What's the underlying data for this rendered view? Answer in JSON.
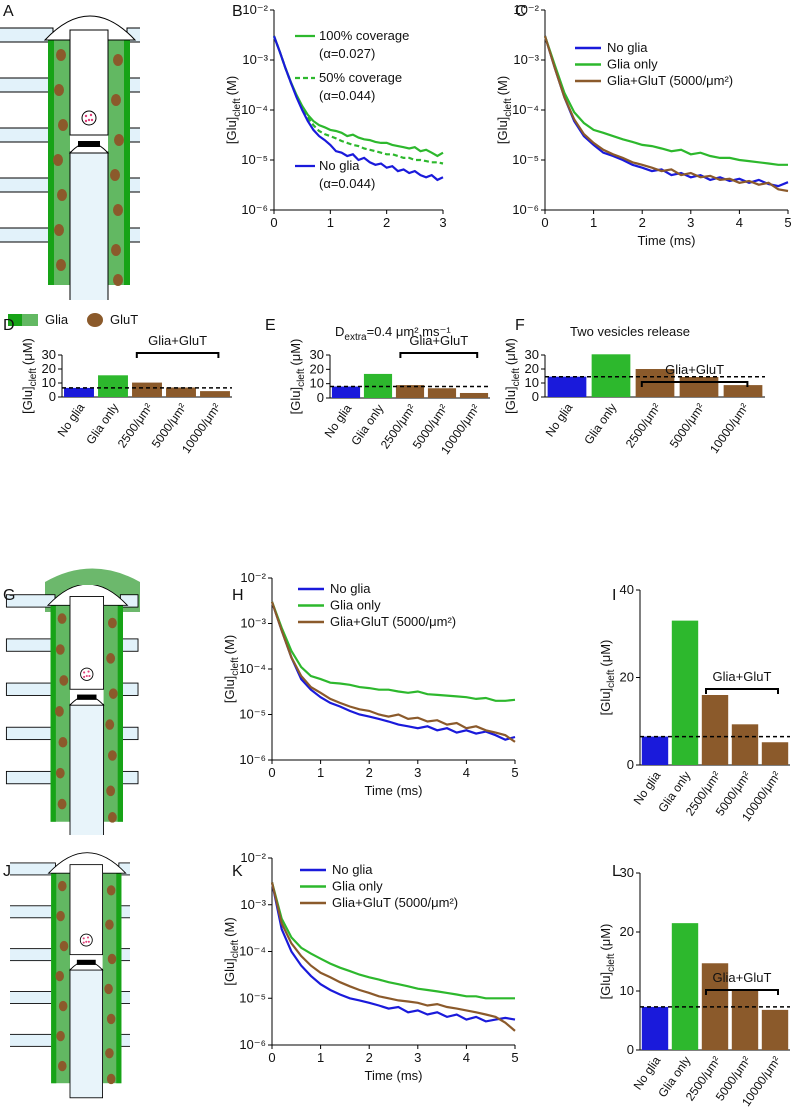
{
  "diagrams": {
    "panels": [
      "A",
      "G",
      "J"
    ],
    "legend": [
      "Glia",
      "GluT"
    ]
  },
  "chart_data": [
    {
      "type": "line",
      "panel": "B",
      "log_y": true,
      "legend": "inline",
      "y_label": [
        "[Glu]",
        "cleft",
        "(M)"
      ],
      "ylim": [
        1e-06,
        0.01
      ],
      "yticks": [
        {
          "value": 1e-06,
          "label": "10⁻⁶"
        },
        {
          "value": 1e-05,
          "label": "10⁻⁵"
        },
        {
          "value": 0.0001,
          "label": "10⁻⁴"
        },
        {
          "value": 0.001,
          "label": "10⁻³"
        },
        {
          "value": 0.01,
          "label": "10⁻²"
        }
      ],
      "xlim": [
        0,
        3
      ],
      "xticks": [
        0,
        1,
        2,
        3
      ],
      "x": [
        0,
        0.1,
        0.2,
        0.3,
        0.4,
        0.5,
        0.6,
        0.7,
        0.8,
        0.9,
        1,
        1.1,
        1.2,
        1.3,
        1.4,
        1.5,
        1.6,
        1.7,
        1.8,
        1.9,
        2,
        2.1,
        2.2,
        2.3,
        2.4,
        2.5,
        2.6,
        2.7,
        2.8,
        2.9,
        3
      ],
      "series": [
        {
          "name": "100% coverage",
          "note": "(α=0.027)",
          "color": "#2db82d",
          "dash": false,
          "values": [
            0.003,
            0.0015,
            0.0007,
            0.00036,
            0.0002,
            0.00012,
            8e-05,
            6e-05,
            5e-05,
            4.5e-05,
            4e-05,
            3.8e-05,
            3.5e-05,
            3e-05,
            3.2e-05,
            2.8e-05,
            2.6e-05,
            2.5e-05,
            2.3e-05,
            2.2e-05,
            2.2e-05,
            2e-05,
            1.9e-05,
            1.8e-05,
            1.7e-05,
            1.8e-05,
            1.5e-05,
            1.6e-05,
            1.4e-05,
            1.2e-05,
            1.4e-05
          ]
        },
        {
          "name": "50% coverage",
          "note": "(α=0.044)",
          "color": "#2db82d",
          "dash": true,
          "values": [
            0.003,
            0.0015,
            0.0007,
            0.00035,
            0.00019,
            0.00011,
            7e-05,
            5e-05,
            3.8e-05,
            3.3e-05,
            3e-05,
            2.7e-05,
            2.4e-05,
            2.2e-05,
            2e-05,
            1.9e-05,
            1.7e-05,
            1.6e-05,
            1.5e-05,
            1.4e-05,
            1.3e-05,
            1.3e-05,
            1.2e-05,
            1.1e-05,
            1.1e-05,
            1e-05,
            1e-05,
            9.5e-06,
            9e-06,
            9e-06,
            8.5e-06
          ]
        },
        {
          "name": "No glia",
          "note": "(α=0.044)",
          "color": "#1a1adb",
          "dash": false,
          "values": [
            0.003,
            0.0015,
            0.0007,
            0.00035,
            0.00018,
            0.0001,
            6e-05,
            4e-05,
            3e-05,
            2.5e-05,
            2e-05,
            1.5e-05,
            1.4e-05,
            1.2e-05,
            1.3e-05,
            1e-05,
            1.1e-05,
            9e-06,
            8e-06,
            8.5e-06,
            7e-06,
            7.5e-06,
            6e-06,
            6.5e-06,
            5.5e-06,
            6e-06,
            5e-06,
            4.5e-06,
            5e-06,
            4e-06,
            4.5e-06
          ]
        }
      ]
    },
    {
      "type": "line",
      "panel": "C",
      "log_y": true,
      "legend": "upper right",
      "y_label": [
        "[Glu]",
        "cleft",
        "(M)"
      ],
      "x_label": "Time (ms)",
      "ylim": [
        1e-06,
        0.01
      ],
      "yticks": [
        {
          "value": 1e-06,
          "label": "10⁻⁶"
        },
        {
          "value": 1e-05,
          "label": "10⁻⁵"
        },
        {
          "value": 0.0001,
          "label": "10⁻⁴"
        },
        {
          "value": 0.001,
          "label": "10⁻³"
        },
        {
          "value": 0.01,
          "label": "10⁻²"
        }
      ],
      "xlim": [
        0,
        5
      ],
      "xticks": [
        0,
        1,
        2,
        3,
        4,
        5
      ],
      "x": [
        0,
        0.2,
        0.4,
        0.6,
        0.8,
        1,
        1.2,
        1.4,
        1.6,
        1.8,
        2,
        2.2,
        2.4,
        2.6,
        2.8,
        3,
        3.2,
        3.4,
        3.6,
        3.8,
        4,
        4.2,
        4.4,
        4.6,
        4.8,
        5
      ],
      "series": [
        {
          "name": "No glia",
          "color": "#1a1adb",
          "values": [
            0.003,
            0.0007,
            0.00018,
            6e-05,
            3e-05,
            2e-05,
            1.4e-05,
            1.2e-05,
            1e-05,
            8e-06,
            7e-06,
            6e-06,
            6.5e-06,
            5e-06,
            5.5e-06,
            4.5e-06,
            5e-06,
            4e-06,
            4.5e-06,
            3.8e-06,
            4.2e-06,
            3.5e-06,
            4e-06,
            3.3e-06,
            3e-06,
            3.6e-06
          ]
        },
        {
          "name": "Glia only",
          "color": "#2db82d",
          "values": [
            0.003,
            0.0008,
            0.00022,
            9e-05,
            5.5e-05,
            4e-05,
            3.5e-05,
            3e-05,
            2.6e-05,
            2.3e-05,
            2e-05,
            1.9e-05,
            1.7e-05,
            1.5e-05,
            1.6e-05,
            1.3e-05,
            1.4e-05,
            1.2e-05,
            1.1e-05,
            1.1e-05,
            1e-05,
            9.5e-06,
            9e-06,
            8.5e-06,
            8e-06,
            8e-06
          ]
        },
        {
          "name": "Glia+GluT (5000/μm²)",
          "color": "#8b5a2b",
          "values": [
            0.003,
            0.0007,
            0.00018,
            6.5e-05,
            3.3e-05,
            2.2e-05,
            1.6e-05,
            1.3e-05,
            1.1e-05,
            9e-06,
            8e-06,
            7e-06,
            6e-06,
            6.5e-06,
            5e-06,
            5.5e-06,
            4.5e-06,
            4.8e-06,
            4e-06,
            4.2e-06,
            3.5e-06,
            3.8e-06,
            3.2e-06,
            3.5e-06,
            2.6e-06,
            2.4e-06
          ]
        }
      ]
    },
    {
      "type": "bar",
      "panel": "D",
      "y_label": [
        "[Glu]",
        "cleft",
        "(μM)"
      ],
      "ylim": [
        0,
        30
      ],
      "yticks": [
        0,
        10,
        20,
        30
      ],
      "categories": [
        "No glia",
        "Glia only",
        "2500/μm²",
        "5000/μm²",
        "10000/μm²"
      ],
      "values": [
        6.5,
        15.5,
        10.3,
        6.8,
        4.2
      ],
      "colors": [
        "#1a1adb",
        "#2db82d",
        "#8b5a2b",
        "#8b5a2b",
        "#8b5a2b"
      ],
      "reference_line": 6.5,
      "group_label": "Glia+GluT"
    },
    {
      "type": "bar",
      "panel": "E",
      "title_parts": [
        "D",
        "extra",
        "=0.4 μm².ms⁻¹"
      ],
      "y_label": [
        "[Glu]",
        "cleft",
        "(μM)"
      ],
      "ylim": [
        0,
        30
      ],
      "yticks": [
        0,
        10,
        20,
        30
      ],
      "categories": [
        "No glia",
        "Glia only",
        "2500/μm²",
        "5000/μm²",
        "10000/μm²"
      ],
      "values": [
        8,
        16.8,
        9,
        6.8,
        3.5
      ],
      "colors": [
        "#1a1adb",
        "#2db82d",
        "#8b5a2b",
        "#8b5a2b",
        "#8b5a2b"
      ],
      "reference_line": 8,
      "group_label": "Glia+GluT"
    },
    {
      "type": "bar",
      "panel": "F",
      "title": "Two vesicles release",
      "y_label": [
        "[Glu]",
        "cleft",
        "(μM)"
      ],
      "ylim": [
        0,
        30
      ],
      "yticks": [
        0,
        10,
        20,
        30
      ],
      "categories": [
        "No glia",
        "Glia only",
        "2500/μm²",
        "5000/μm²",
        "10000/μm²"
      ],
      "values": [
        14.5,
        30.5,
        20,
        14.3,
        8.5
      ],
      "colors": [
        "#1a1adb",
        "#2db82d",
        "#8b5a2b",
        "#8b5a2b",
        "#8b5a2b"
      ],
      "reference_line": 14.5,
      "group_label": "Glia+GluT"
    },
    {
      "type": "line",
      "panel": "H",
      "log_y": true,
      "legend": "upper right",
      "y_label": [
        "[Glu]",
        "cleft",
        "(M)"
      ],
      "x_label": "Time (ms)",
      "ylim": [
        1e-06,
        0.01
      ],
      "yticks": [
        {
          "value": 1e-06,
          "label": "10⁻⁶"
        },
        {
          "value": 1e-05,
          "label": "10⁻⁵"
        },
        {
          "value": 0.0001,
          "label": "10⁻⁴"
        },
        {
          "value": 0.001,
          "label": "10⁻³"
        },
        {
          "value": 0.01,
          "label": "10⁻²"
        }
      ],
      "xlim": [
        0,
        5
      ],
      "xticks": [
        0,
        1,
        2,
        3,
        4,
        5
      ],
      "x": [
        0,
        0.2,
        0.4,
        0.6,
        0.8,
        1,
        1.2,
        1.4,
        1.6,
        1.8,
        2,
        2.2,
        2.4,
        2.6,
        2.8,
        3,
        3.2,
        3.4,
        3.6,
        3.8,
        4,
        4.2,
        4.4,
        4.6,
        4.8,
        5
      ],
      "series": [
        {
          "name": "No glia",
          "color": "#1a1adb",
          "values": [
            0.003,
            0.0007,
            0.00018,
            6e-05,
            3.5e-05,
            2.4e-05,
            1.8e-05,
            1.5e-05,
            1.2e-05,
            1e-05,
            9e-06,
            8e-06,
            7e-06,
            6e-06,
            5.5e-06,
            5e-06,
            5.5e-06,
            4.5e-06,
            5e-06,
            4e-06,
            4.5e-06,
            3.8e-06,
            4.2e-06,
            3.5e-06,
            2.8e-06,
            3.2e-06
          ]
        },
        {
          "name": "Glia only",
          "color": "#2db82d",
          "values": [
            0.003,
            0.0008,
            0.00025,
            0.00011,
            7e-05,
            6e-05,
            5e-05,
            4.8e-05,
            4.5e-05,
            4e-05,
            3.8e-05,
            3.5e-05,
            3.5e-05,
            3.2e-05,
            3e-05,
            3.2e-05,
            2.8e-05,
            2.7e-05,
            2.6e-05,
            2.5e-05,
            2.4e-05,
            2.2e-05,
            2.3e-05,
            2e-05,
            2e-05,
            2.1e-05
          ]
        },
        {
          "name": "Glia+GluT (5000/μm²)",
          "color": "#8b5a2b",
          "values": [
            0.003,
            0.0007,
            0.00018,
            7e-05,
            4e-05,
            3e-05,
            2.2e-05,
            1.8e-05,
            1.5e-05,
            1.3e-05,
            1.2e-05,
            1e-05,
            9e-06,
            1e-05,
            8e-06,
            8.5e-06,
            7e-06,
            7.5e-06,
            6e-06,
            6.5e-06,
            5e-06,
            5.5e-06,
            4.5e-06,
            4e-06,
            3.5e-06,
            2.5e-06
          ]
        }
      ]
    },
    {
      "type": "bar",
      "panel": "I",
      "y_label": [
        "[Glu]",
        "cleft",
        "(μM)"
      ],
      "ylim": [
        0,
        40
      ],
      "yticks": [
        0,
        20,
        40
      ],
      "categories": [
        "No glia",
        "Glia only",
        "2500/μm²",
        "5000/μm²",
        "10000/μm²"
      ],
      "values": [
        6.5,
        33,
        16,
        9.3,
        5.2
      ],
      "colors": [
        "#1a1adb",
        "#2db82d",
        "#8b5a2b",
        "#8b5a2b",
        "#8b5a2b"
      ],
      "reference_line": 6.5,
      "group_label": "Glia+GluT"
    },
    {
      "type": "line",
      "panel": "K",
      "log_y": true,
      "legend": "upper right",
      "y_label": [
        "[Glu]",
        "cleft",
        "(M)"
      ],
      "x_label": "Time (ms)",
      "ylim": [
        1e-06,
        0.01
      ],
      "yticks": [
        {
          "value": 1e-06,
          "label": "10⁻⁶"
        },
        {
          "value": 1e-05,
          "label": "10⁻⁵"
        },
        {
          "value": 0.0001,
          "label": "10⁻⁴"
        },
        {
          "value": 0.001,
          "label": "10⁻³"
        },
        {
          "value": 0.01,
          "label": "10⁻²"
        }
      ],
      "xlim": [
        0,
        5
      ],
      "xticks": [
        0,
        1,
        2,
        3,
        4,
        5
      ],
      "x": [
        0,
        0.2,
        0.4,
        0.6,
        0.8,
        1,
        1.2,
        1.4,
        1.6,
        1.8,
        2,
        2.2,
        2.4,
        2.6,
        2.8,
        3,
        3.2,
        3.4,
        3.6,
        3.8,
        4,
        4.2,
        4.4,
        4.6,
        4.8,
        5
      ],
      "series": [
        {
          "name": "No glia",
          "color": "#1a1adb",
          "values": [
            0.003,
            0.0003,
            0.0001,
            5e-05,
            3e-05,
            2e-05,
            1.5e-05,
            1.2e-05,
            1e-05,
            9e-06,
            8e-06,
            7e-06,
            6e-06,
            6.5e-06,
            5e-06,
            5.5e-06,
            4.5e-06,
            5e-06,
            4e-06,
            4.5e-06,
            3.5e-06,
            4e-06,
            3.2e-06,
            3.5e-06,
            3.8e-06,
            3.5e-06
          ]
        },
        {
          "name": "Glia only",
          "color": "#2db82d",
          "values": [
            0.003,
            0.0005,
            0.0002,
            0.00012,
            9e-05,
            7e-05,
            5.5e-05,
            4.5e-05,
            3.8e-05,
            3.2e-05,
            2.8e-05,
            2.5e-05,
            2.2e-05,
            2e-05,
            1.8e-05,
            1.6e-05,
            1.5e-05,
            1.4e-05,
            1.3e-05,
            1.2e-05,
            1.1e-05,
            1.1e-05,
            1e-05,
            1e-05,
            1e-05,
            1e-05
          ]
        },
        {
          "name": "Glia+GluT (5000/μm²)",
          "color": "#8b5a2b",
          "values": [
            0.003,
            0.0004,
            0.00015,
            8e-05,
            5e-05,
            3.5e-05,
            2.8e-05,
            2.2e-05,
            1.8e-05,
            1.5e-05,
            1.3e-05,
            1.1e-05,
            1e-05,
            9e-06,
            8.5e-06,
            8e-06,
            7e-06,
            7.5e-06,
            6.5e-06,
            6e-06,
            5.5e-06,
            5e-06,
            4.5e-06,
            4e-06,
            3e-06,
            2e-06
          ]
        }
      ]
    },
    {
      "type": "bar",
      "panel": "L",
      "y_label": [
        "[Glu]",
        "cleft",
        "(μM)"
      ],
      "ylim": [
        0,
        30
      ],
      "yticks": [
        0,
        10,
        20,
        30
      ],
      "categories": [
        "No glia",
        "Glia only",
        "2500/μm²",
        "5000/μm²",
        "10000/μm²"
      ],
      "values": [
        7.3,
        21.5,
        14.7,
        10,
        6.8
      ],
      "colors": [
        "#1a1adb",
        "#2db82d",
        "#8b5a2b",
        "#8b5a2b",
        "#8b5a2b"
      ],
      "reference_line": 7.3,
      "group_label": "Glia+GluT"
    }
  ]
}
